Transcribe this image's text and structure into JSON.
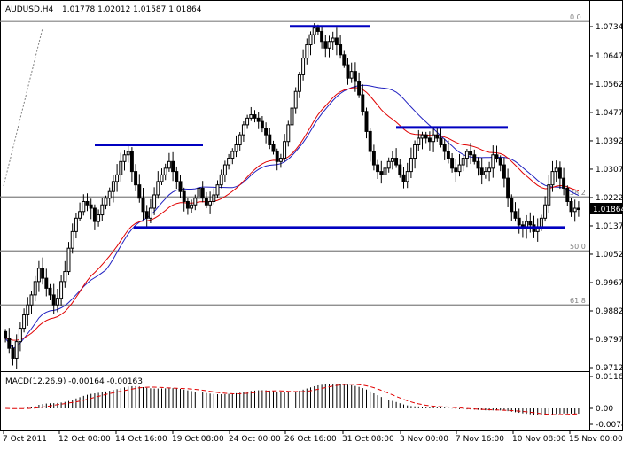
{
  "window": {
    "symbol_label": "AUDUSD,H4",
    "ohlc_text": "1.01778 1.02012 1.01587 1.01864",
    "macd_label": "MACD(12,26,9) -0.00164 -0.00163"
  },
  "colors": {
    "background": "#ffffff",
    "candle_up": "#ffffff",
    "candle_down": "#000000",
    "ma_fast": "#e00000",
    "ma_slow": "#2020c0",
    "support_resistance": "#0000c0",
    "fib_line": "#808080",
    "macd_signal": "#e00000"
  },
  "chart_data": [
    {
      "type": "candlestick",
      "symbol": "AUDUSD",
      "timeframe": "H4",
      "ylim": [
        0.9712,
        1.079
      ],
      "y_ticks": [
        "1.07345",
        "1.06470",
        "1.05620",
        "1.04770",
        "1.03920",
        "1.03070",
        "1.02220",
        "1.01370",
        "1.00520",
        "0.99670",
        "0.98820",
        "0.97970",
        "0.97120"
      ],
      "x_ticks": [
        "7 Oct 2011",
        "12 Oct 00:00",
        "14 Oct 16:00",
        "19 Oct 08:00",
        "24 Oct 00:00",
        "26 Oct 16:00",
        "31 Oct 08:00",
        "3 Nov 00:00",
        "7 Nov 16:00",
        "10 Nov 08:00",
        "15 Nov 00:00"
      ],
      "current_price": "1.01864",
      "close_series": [
        0.98,
        0.977,
        0.974,
        0.979,
        0.983,
        0.987,
        0.99,
        0.993,
        0.997,
        1.001,
        0.998,
        0.995,
        0.993,
        0.99,
        0.992,
        0.997,
        1.0,
        1.007,
        1.012,
        1.016,
        1.018,
        1.021,
        1.02,
        1.019,
        1.015,
        1.017,
        1.02,
        1.022,
        1.024,
        1.027,
        1.029,
        1.033,
        1.035,
        1.036,
        1.03,
        1.026,
        1.022,
        1.018,
        1.016,
        1.019,
        1.023,
        1.027,
        1.029,
        1.031,
        1.033,
        1.03,
        1.027,
        1.024,
        1.021,
        1.019,
        1.02,
        1.022,
        1.025,
        1.022,
        1.02,
        1.021,
        1.023,
        1.026,
        1.029,
        1.032,
        1.034,
        1.036,
        1.038,
        1.041,
        1.044,
        1.046,
        1.047,
        1.046,
        1.045,
        1.043,
        1.041,
        1.038,
        1.036,
        1.033,
        1.034,
        1.039,
        1.044,
        1.049,
        1.054,
        1.059,
        1.064,
        1.068,
        1.071,
        1.073,
        1.072,
        1.069,
        1.067,
        1.069,
        1.07,
        1.068,
        1.065,
        1.062,
        1.058,
        1.06,
        1.057,
        1.053,
        1.048,
        1.042,
        1.036,
        1.032,
        1.03,
        1.029,
        1.031,
        1.033,
        1.034,
        1.032,
        1.029,
        1.027,
        1.03,
        1.034,
        1.038,
        1.04,
        1.041,
        1.04,
        1.039,
        1.041,
        1.04,
        1.038,
        1.036,
        1.034,
        1.031,
        1.03,
        1.032,
        1.034,
        1.036,
        1.035,
        1.033,
        1.031,
        1.029,
        1.03,
        1.031,
        1.035,
        1.034,
        1.032,
        1.028,
        1.022,
        1.018,
        1.016,
        1.014,
        1.013,
        1.015,
        1.014,
        1.012,
        1.013,
        1.016,
        1.02,
        1.026,
        1.03,
        1.031,
        1.028,
        1.025,
        1.021,
        1.018,
        1.019,
        1.0186
      ],
      "fibonacci": [
        {
          "level": "0.0",
          "price": 1.075
        },
        {
          "level": "38.2",
          "price": 1.0224
        },
        {
          "level": "50.0",
          "price": 1.0062
        },
        {
          "level": "61.8",
          "price": 0.99
        }
      ],
      "horizontal_levels": [
        1.0224,
        1.0062,
        0.99
      ],
      "support_resistance_segments": [
        {
          "kind": "resistance",
          "price": 1.038
        },
        {
          "kind": "resistance",
          "price": 1.0735
        },
        {
          "kind": "resistance",
          "price": 1.0432
        },
        {
          "kind": "support",
          "price": 1.0132
        }
      ]
    },
    {
      "type": "histogram",
      "name": "MACD(12,26,9)",
      "ylim": [
        -0.00742,
        0.01162
      ],
      "y_ticks": [
        "0.011627",
        "0.00",
        "-0.00742"
      ],
      "main_value": "-0.00164",
      "signal_value": "-0.00163"
    }
  ]
}
